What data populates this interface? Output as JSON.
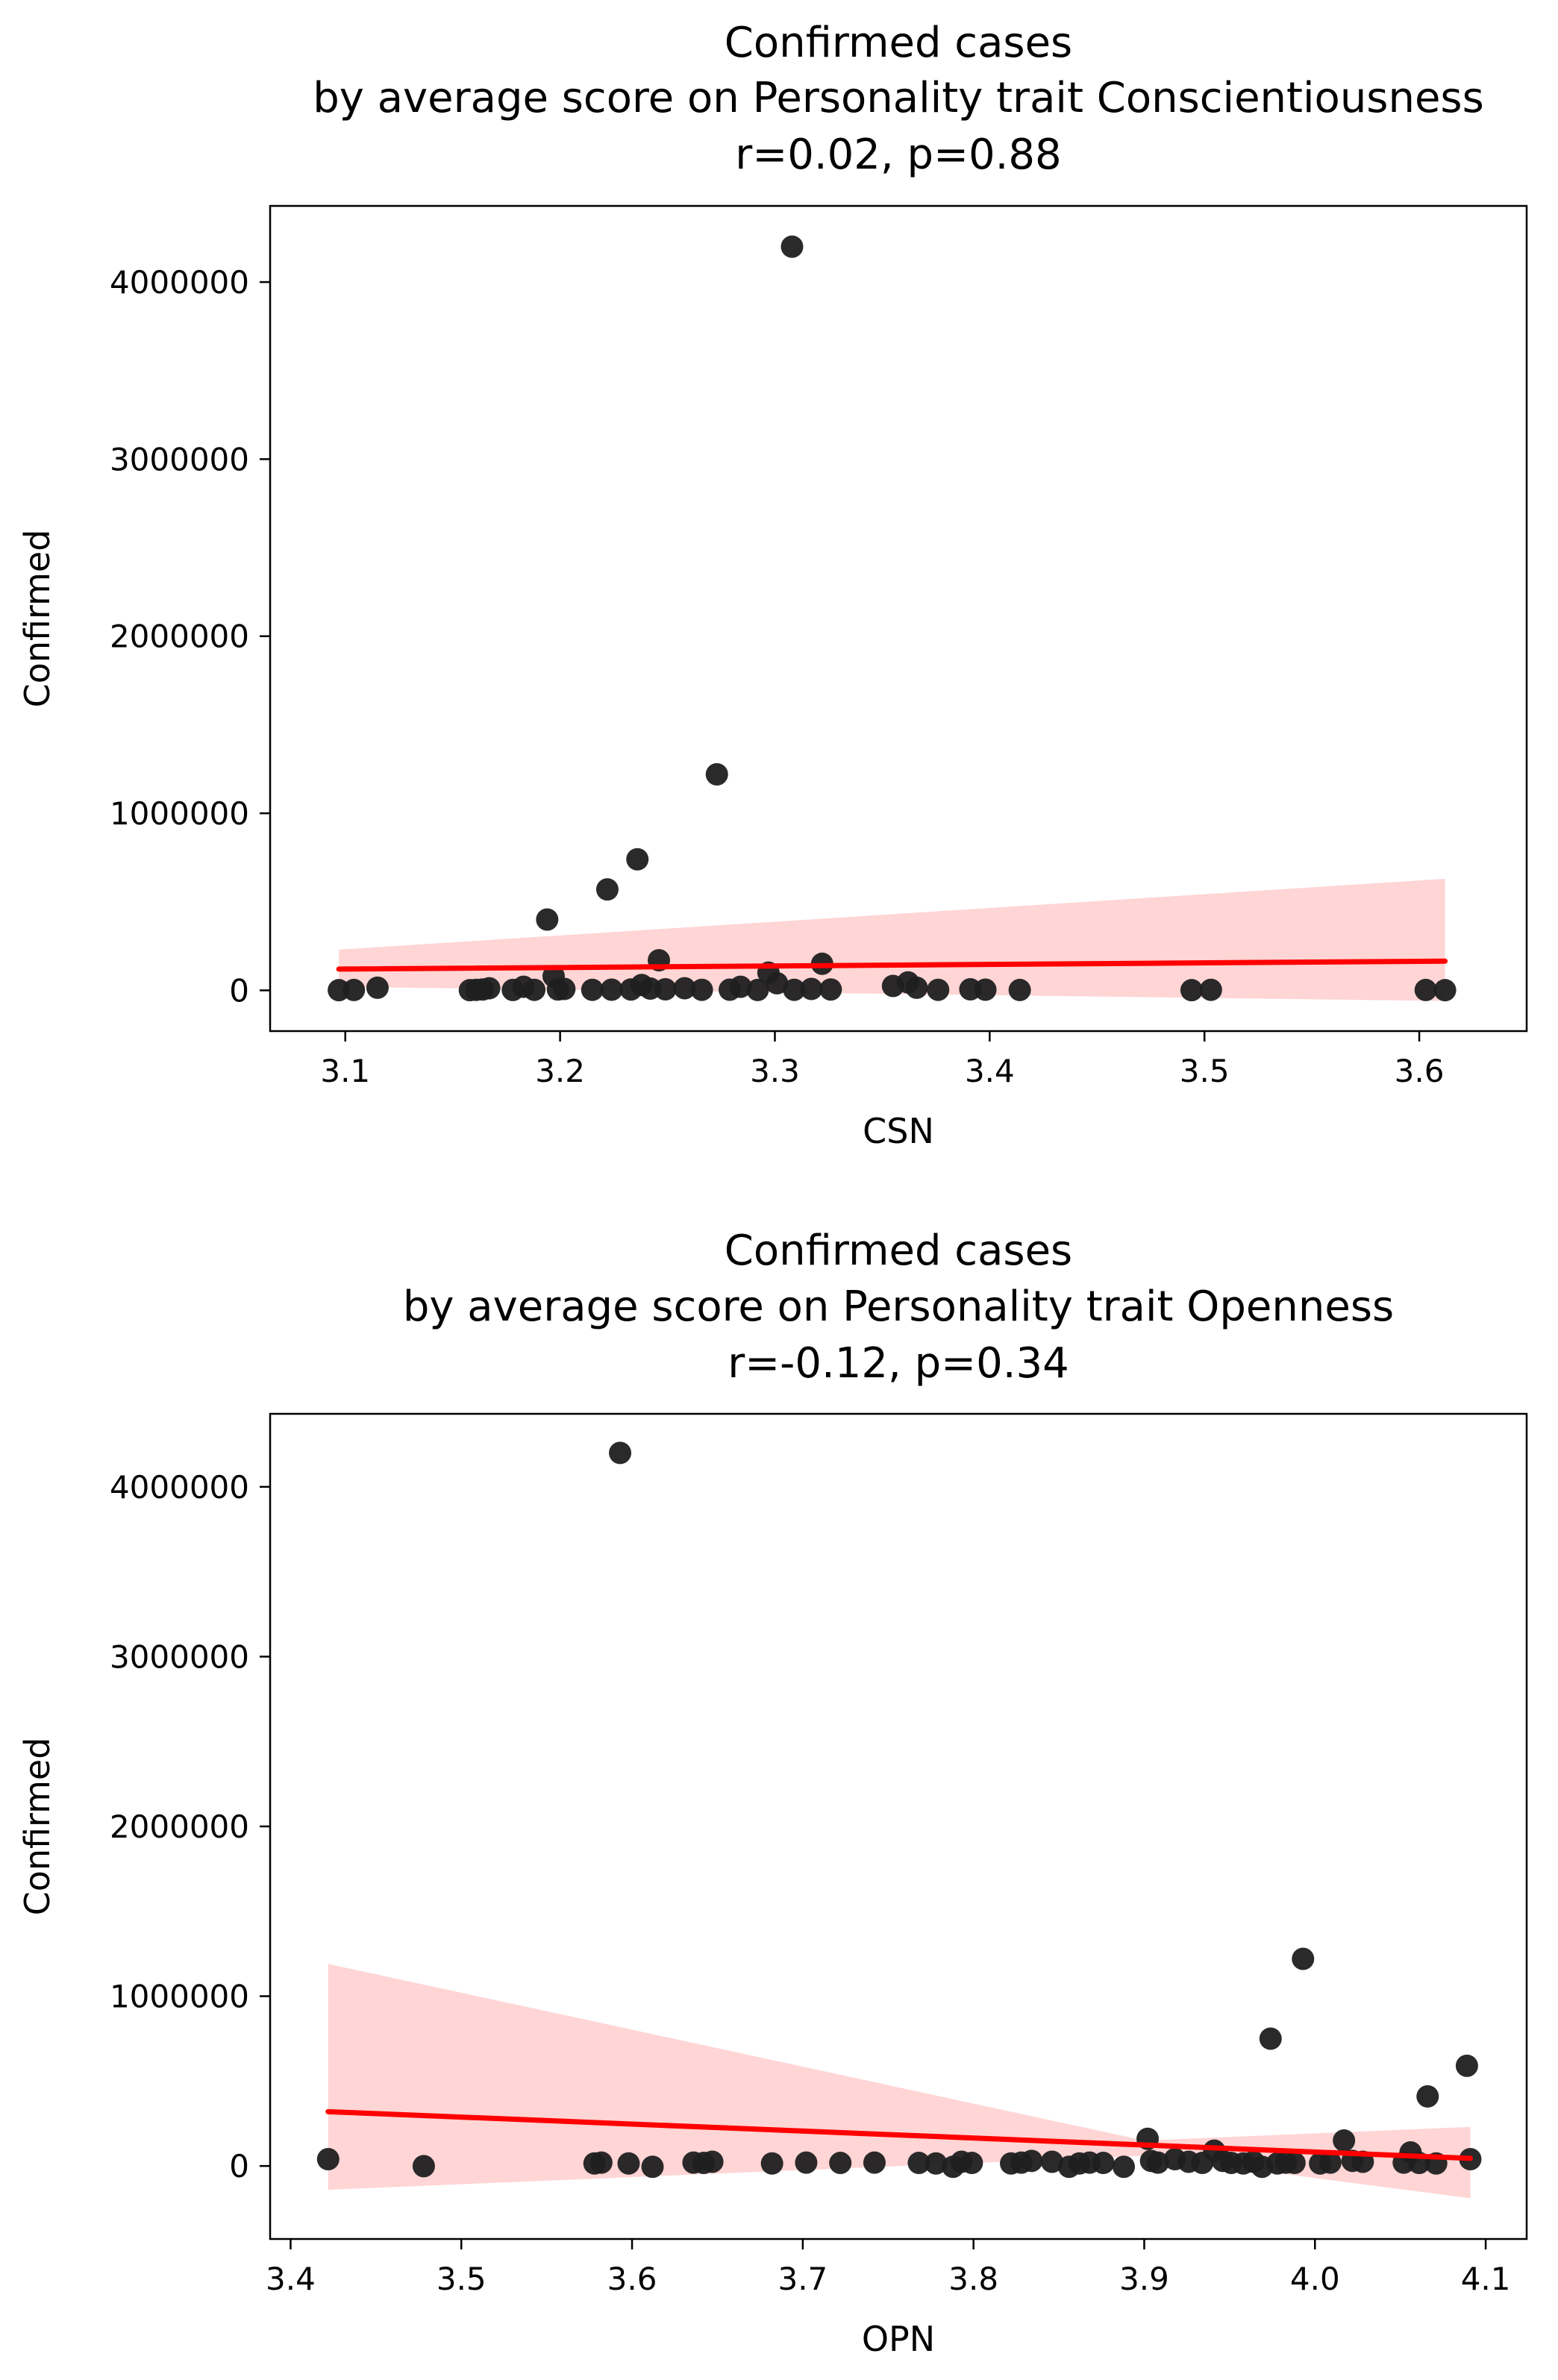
{
  "chart_data": [
    {
      "type": "scatter",
      "title_lines": [
        "Confirmed cases",
        "by average score on Personality trait Conscientiousness",
        "r=0.02, p=0.88"
      ],
      "xlabel": "CSN",
      "ylabel": "Confirmed",
      "xlim": [
        3.065,
        3.65
      ],
      "ylim": [
        -230000,
        4430000
      ],
      "xticks": [
        3.1,
        3.2,
        3.3,
        3.4,
        3.5,
        3.6
      ],
      "xtick_labels": [
        "3.1",
        "3.2",
        "3.3",
        "3.4",
        "3.5",
        "3.6"
      ],
      "yticks": [
        0,
        1000000,
        2000000,
        3000000,
        4000000
      ],
      "ytick_labels": [
        "0",
        "1000000",
        "2000000",
        "3000000",
        "4000000"
      ],
      "grid": false,
      "point_color": "#1f1f1f",
      "fit_color": "#ff0000",
      "band_color": "#ffb3b3",
      "points": [
        {
          "x": 3.097,
          "y": 1000
        },
        {
          "x": 3.104,
          "y": 2000
        },
        {
          "x": 3.115,
          "y": 15000
        },
        {
          "x": 3.158,
          "y": 1000
        },
        {
          "x": 3.161,
          "y": 3000
        },
        {
          "x": 3.164,
          "y": 5000
        },
        {
          "x": 3.167,
          "y": 12000
        },
        {
          "x": 3.178,
          "y": 2000
        },
        {
          "x": 3.183,
          "y": 20000
        },
        {
          "x": 3.188,
          "y": 3000
        },
        {
          "x": 3.194,
          "y": 400000
        },
        {
          "x": 3.197,
          "y": 80000
        },
        {
          "x": 3.199,
          "y": 5000
        },
        {
          "x": 3.202,
          "y": 8000
        },
        {
          "x": 3.215,
          "y": 3000
        },
        {
          "x": 3.222,
          "y": 570000
        },
        {
          "x": 3.224,
          "y": 4000
        },
        {
          "x": 3.236,
          "y": 740000
        },
        {
          "x": 3.233,
          "y": 5000
        },
        {
          "x": 3.238,
          "y": 30000
        },
        {
          "x": 3.242,
          "y": 10000
        },
        {
          "x": 3.246,
          "y": 170000
        },
        {
          "x": 3.249,
          "y": 6000
        },
        {
          "x": 3.258,
          "y": 12000
        },
        {
          "x": 3.266,
          "y": 3000
        },
        {
          "x": 3.273,
          "y": 1220000
        },
        {
          "x": 3.279,
          "y": 4000
        },
        {
          "x": 3.284,
          "y": 20000
        },
        {
          "x": 3.292,
          "y": 2000
        },
        {
          "x": 3.297,
          "y": 100000
        },
        {
          "x": 3.301,
          "y": 40000
        },
        {
          "x": 3.309,
          "y": 3000
        },
        {
          "x": 3.308,
          "y": 4200000
        },
        {
          "x": 3.317,
          "y": 8000
        },
        {
          "x": 3.322,
          "y": 150000
        },
        {
          "x": 3.326,
          "y": 5000
        },
        {
          "x": 3.355,
          "y": 25000
        },
        {
          "x": 3.362,
          "y": 45000
        },
        {
          "x": 3.366,
          "y": 15000
        },
        {
          "x": 3.376,
          "y": 3000
        },
        {
          "x": 3.391,
          "y": 6000
        },
        {
          "x": 3.398,
          "y": 4000
        },
        {
          "x": 3.414,
          "y": 2000
        },
        {
          "x": 3.494,
          "y": 1000
        },
        {
          "x": 3.503,
          "y": 3000
        },
        {
          "x": 3.603,
          "y": 2000
        },
        {
          "x": 3.612,
          "y": 1000
        }
      ],
      "fit": {
        "x": [
          3.097,
          3.612
        ],
        "y": [
          120000,
          165000
        ]
      },
      "band": {
        "x": [
          3.097,
          3.612
        ],
        "lower": [
          20000,
          -60000
        ],
        "upper": [
          230000,
          630000
        ]
      }
    },
    {
      "type": "scatter",
      "title_lines": [
        "Confirmed cases",
        "by average score on Personality trait Openness",
        "r=-0.12, p=0.34"
      ],
      "xlabel": "OPN",
      "ylabel": "Confirmed",
      "xlim": [
        3.388,
        4.124
      ],
      "ylim": [
        -430000,
        4430000
      ],
      "xticks": [
        3.4,
        3.5,
        3.6,
        3.7,
        3.8,
        3.9,
        4.0,
        4.1
      ],
      "xtick_labels": [
        "3.4",
        "3.5",
        "3.6",
        "3.7",
        "3.8",
        "3.9",
        "4.0",
        "4.1"
      ],
      "yticks": [
        0,
        1000000,
        2000000,
        3000000,
        4000000
      ],
      "ytick_labels": [
        "0",
        "1000000",
        "2000000",
        "3000000",
        "4000000"
      ],
      "grid": false,
      "point_color": "#1f1f1f",
      "fit_color": "#ff0000",
      "band_color": "#ffb3b3",
      "points": [
        {
          "x": 3.422,
          "y": 40000
        },
        {
          "x": 3.478,
          "y": -1000
        },
        {
          "x": 3.578,
          "y": 15000
        },
        {
          "x": 3.582,
          "y": 20000
        },
        {
          "x": 3.593,
          "y": 4200000
        },
        {
          "x": 3.598,
          "y": 15000
        },
        {
          "x": 3.612,
          "y": -5000
        },
        {
          "x": 3.636,
          "y": 20000
        },
        {
          "x": 3.642,
          "y": 18000
        },
        {
          "x": 3.647,
          "y": 25000
        },
        {
          "x": 3.682,
          "y": 15000
        },
        {
          "x": 3.702,
          "y": 20000
        },
        {
          "x": 3.722,
          "y": 18000
        },
        {
          "x": 3.742,
          "y": 20000
        },
        {
          "x": 3.768,
          "y": 18000
        },
        {
          "x": 3.778,
          "y": 15000
        },
        {
          "x": 3.788,
          "y": -5000
        },
        {
          "x": 3.793,
          "y": 25000
        },
        {
          "x": 3.799,
          "y": 18000
        },
        {
          "x": 3.822,
          "y": 15000
        },
        {
          "x": 3.828,
          "y": 20000
        },
        {
          "x": 3.834,
          "y": 30000
        },
        {
          "x": 3.846,
          "y": 25000
        },
        {
          "x": 3.856,
          "y": -5000
        },
        {
          "x": 3.862,
          "y": 15000
        },
        {
          "x": 3.868,
          "y": 20000
        },
        {
          "x": 3.876,
          "y": 18000
        },
        {
          "x": 3.888,
          "y": -5000
        },
        {
          "x": 3.902,
          "y": 160000
        },
        {
          "x": 3.904,
          "y": 30000
        },
        {
          "x": 3.908,
          "y": 20000
        },
        {
          "x": 3.918,
          "y": 40000
        },
        {
          "x": 3.926,
          "y": 25000
        },
        {
          "x": 3.934,
          "y": 18000
        },
        {
          "x": 3.941,
          "y": 90000
        },
        {
          "x": 3.946,
          "y": 30000
        },
        {
          "x": 3.951,
          "y": 18000
        },
        {
          "x": 3.958,
          "y": 15000
        },
        {
          "x": 3.964,
          "y": 25000
        },
        {
          "x": 3.969,
          "y": -5000
        },
        {
          "x": 3.974,
          "y": 750000
        },
        {
          "x": 3.978,
          "y": 15000
        },
        {
          "x": 3.983,
          "y": 20000
        },
        {
          "x": 3.988,
          "y": 18000
        },
        {
          "x": 3.993,
          "y": 1220000
        },
        {
          "x": 4.003,
          "y": 15000
        },
        {
          "x": 4.009,
          "y": 20000
        },
        {
          "x": 4.017,
          "y": 150000
        },
        {
          "x": 4.022,
          "y": 30000
        },
        {
          "x": 4.028,
          "y": 25000
        },
        {
          "x": 4.052,
          "y": 20000
        },
        {
          "x": 4.056,
          "y": 80000
        },
        {
          "x": 4.061,
          "y": 18000
        },
        {
          "x": 4.066,
          "y": 410000
        },
        {
          "x": 4.071,
          "y": 15000
        },
        {
          "x": 4.089,
          "y": 590000
        },
        {
          "x": 4.091,
          "y": 40000
        }
      ],
      "fit": {
        "x": [
          3.422,
          4.091
        ],
        "y": [
          320000,
          45000
        ]
      },
      "band": {
        "x": [
          3.422,
          3.9,
          4.091
        ],
        "lower": [
          -140000,
          60000,
          -190000
        ],
        "upper": [
          1190000,
          150000,
          230000
        ]
      }
    }
  ]
}
